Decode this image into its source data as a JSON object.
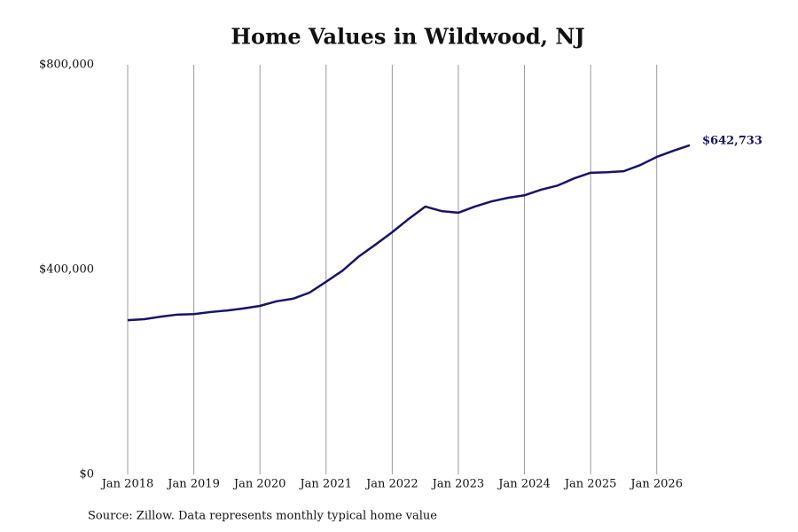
{
  "chart_data": {
    "type": "line",
    "title": "Home Values in Wildwood, NJ",
    "source": "Source: Zillow. Data represents monthly typical home value",
    "x": [
      2018,
      2018.25,
      2018.5,
      2018.75,
      2019,
      2019.25,
      2019.5,
      2019.75,
      2020,
      2020.25,
      2020.5,
      2020.75,
      2021,
      2021.25,
      2021.5,
      2021.75,
      2022,
      2022.25,
      2022.5,
      2022.75,
      2023,
      2023.25,
      2023.5,
      2023.75,
      2024,
      2024.25,
      2024.5,
      2024.75,
      2025,
      2025.25,
      2025.5,
      2025.75,
      2026,
      2026.25,
      2026.5
    ],
    "series": [
      {
        "name": "Typical home value",
        "color": "#14146b",
        "values": [
          301000,
          303000,
          308000,
          312000,
          313000,
          317000,
          320000,
          324000,
          329000,
          338000,
          343000,
          355000,
          376000,
          398000,
          426000,
          449000,
          473000,
          499000,
          523000,
          514000,
          511000,
          523000,
          533000,
          540000,
          545000,
          556000,
          564000,
          578000,
          589000,
          590000,
          592000,
          604000,
          620000,
          632000,
          642733
        ],
        "last_value_label": "$642,733"
      }
    ],
    "xlim": [
      2018,
      2026.5
    ],
    "xticks": [
      {
        "value": 2018,
        "label": "Jan 2018"
      },
      {
        "value": 2019,
        "label": "Jan 2019"
      },
      {
        "value": 2020,
        "label": "Jan 2020"
      },
      {
        "value": 2021,
        "label": "Jan 2021"
      },
      {
        "value": 2022,
        "label": "Jan 2022"
      },
      {
        "value": 2023,
        "label": "Jan 2023"
      },
      {
        "value": 2024,
        "label": "Jan 2024"
      },
      {
        "value": 2025,
        "label": "Jan 2025"
      },
      {
        "value": 2026,
        "label": "Jan 2026"
      }
    ],
    "ylim": [
      0,
      800000
    ],
    "yticks": [
      {
        "value": 0,
        "label": "$0"
      },
      {
        "value": 400000,
        "label": "$400,000"
      },
      {
        "value": 800000,
        "label": "$800,000"
      }
    ],
    "grid": "x"
  }
}
